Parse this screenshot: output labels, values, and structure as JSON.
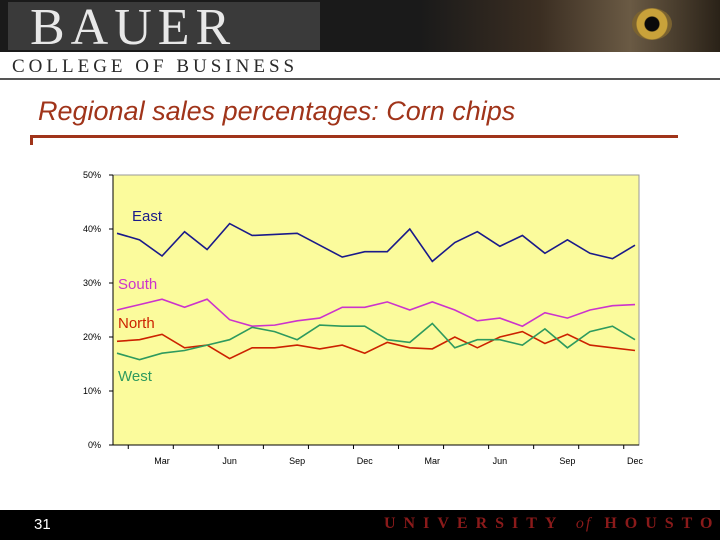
{
  "header": {
    "logo_text": "BAUER",
    "subtitle": "COLLEGE OF BUSINESS"
  },
  "slide": {
    "title": "Regional sales percentages:  Corn chips",
    "page_number": "31"
  },
  "footer": {
    "university_a": "UNIVERSITY",
    "university_of": "of",
    "university_b": "HOUSTON"
  },
  "colors": {
    "title": "#a0341a",
    "plot_bg": "#fbfb9c",
    "east": "#1a1a8a",
    "south": "#cc33cc",
    "north": "#cc2200",
    "west": "#2e9a5e"
  },
  "chart_data": {
    "type": "line",
    "ylim": [
      0,
      50
    ],
    "y_ticks": [
      "0%",
      "10%",
      "20%",
      "30%",
      "40%",
      "50%"
    ],
    "x_tick_labels": [
      "Mar",
      "Jun",
      "Sep",
      "Dec",
      "Mar",
      "Jun",
      "Sep",
      "Dec"
    ],
    "x": [
      1,
      2,
      3,
      4,
      5,
      6,
      7,
      8,
      9,
      10,
      11,
      12,
      13,
      14,
      15,
      16,
      17,
      18,
      19,
      20,
      21,
      22,
      23,
      24
    ],
    "grid": false,
    "series": [
      {
        "name": "East",
        "color": "#1a1a8a",
        "values": [
          39.2,
          38.0,
          35.0,
          39.5,
          36.2,
          41.0,
          38.8,
          39.0,
          39.2,
          37.0,
          34.8,
          35.8,
          35.8,
          40.0,
          34.0,
          37.5,
          39.5,
          36.8,
          38.8,
          35.5,
          38.0,
          35.5,
          34.5,
          37.0
        ]
      },
      {
        "name": "South",
        "color": "#cc33cc",
        "values": [
          25.0,
          26.0,
          27.0,
          25.5,
          27.0,
          23.2,
          22.0,
          22.2,
          23.0,
          23.5,
          25.5,
          25.5,
          26.5,
          25.0,
          26.5,
          25.0,
          23.0,
          23.5,
          22.0,
          24.5,
          23.5,
          25.0,
          25.8,
          26.0
        ]
      },
      {
        "name": "North",
        "color": "#cc2200",
        "values": [
          19.2,
          19.5,
          20.5,
          18.0,
          18.5,
          16.0,
          18.0,
          18.0,
          18.5,
          17.8,
          18.5,
          17.0,
          19.0,
          18.0,
          17.8,
          20.0,
          18.0,
          20.0,
          21.0,
          18.8,
          20.5,
          18.5,
          18.0,
          17.5
        ]
      },
      {
        "name": "West",
        "color": "#2e9a5e",
        "values": [
          17.0,
          15.8,
          17.0,
          17.5,
          18.5,
          19.5,
          21.8,
          21.0,
          19.5,
          22.2,
          22.0,
          22.0,
          19.5,
          19.0,
          22.5,
          18.0,
          19.5,
          19.5,
          18.5,
          21.5,
          18.0,
          21.0,
          22.0,
          19.5
        ]
      }
    ]
  }
}
